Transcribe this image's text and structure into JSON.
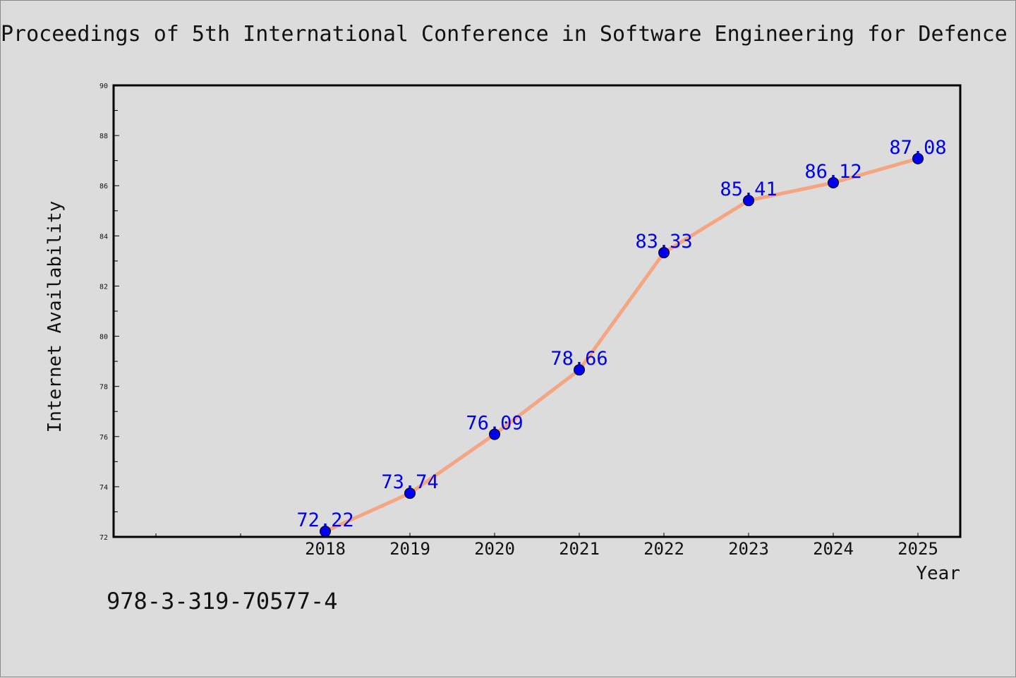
{
  "chart_data": {
    "type": "line",
    "title": "Proceedings of 5th International Conference in Software Engineering for Defence",
    "xlabel": "Year",
    "ylabel": "Internet Availability",
    "categories": [
      "2018",
      "2019",
      "2020",
      "2021",
      "2022",
      "2023",
      "2024",
      "2025"
    ],
    "series": [
      {
        "values": [
          72.22,
          73.74,
          76.09,
          78.66,
          83.33,
          85.41,
          86.12,
          87.08
        ],
        "labels": [
          "72.22",
          "73.74",
          "76.09",
          "78.66",
          "83.33",
          "85.41",
          "86.12",
          "87.08"
        ],
        "line_color": "#f4a582",
        "marker_color": "#0000ee",
        "label_color": "#0000ee"
      }
    ],
    "ylim": [
      72,
      90
    ],
    "yticks": [
      "72",
      "74",
      "76",
      "78",
      "80",
      "82",
      "84",
      "86",
      "88",
      "90"
    ],
    "grid": false,
    "legend": "none"
  },
  "footer": {
    "isbn": "978-3-319-70577-4"
  },
  "colors": {
    "background": "#dcdcdc",
    "plot_background": "#dcdcdc",
    "axis": "#000000",
    "text": "#111111"
  }
}
